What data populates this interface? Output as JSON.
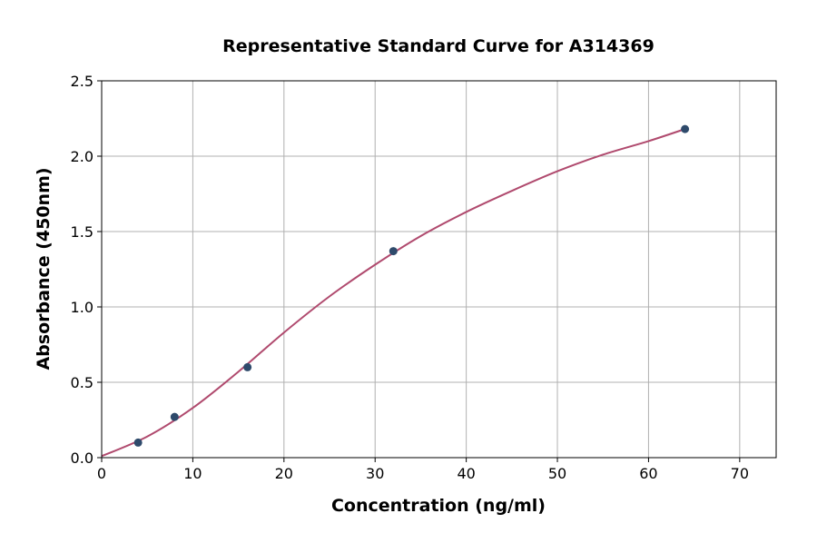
{
  "chart_data": {
    "type": "scatter",
    "title": "Representative Standard Curve for A314369",
    "xlabel": "Concentration (ng/ml)",
    "ylabel": "Absorbance (450nm)",
    "xlim": [
      0,
      74
    ],
    "ylim": [
      0,
      2.5
    ],
    "xticks": [
      0,
      10,
      20,
      30,
      40,
      50,
      60,
      70
    ],
    "yticks": [
      "0.0",
      "0.5",
      "1.0",
      "1.5",
      "2.0",
      "2.5"
    ],
    "grid": true,
    "points": {
      "x": [
        4,
        8,
        16,
        32,
        64
      ],
      "y": [
        0.1,
        0.27,
        0.6,
        1.37,
        2.18
      ],
      "color": "#2e4a6b"
    },
    "fit_curve": {
      "x": [
        0,
        5,
        10,
        15,
        20,
        25,
        30,
        35,
        40,
        45,
        50,
        55,
        60,
        64
      ],
      "y": [
        0.01,
        0.14,
        0.33,
        0.57,
        0.83,
        1.07,
        1.28,
        1.47,
        1.63,
        1.77,
        1.9,
        2.01,
        2.1,
        2.18
      ],
      "color": "#b04a6e"
    }
  }
}
